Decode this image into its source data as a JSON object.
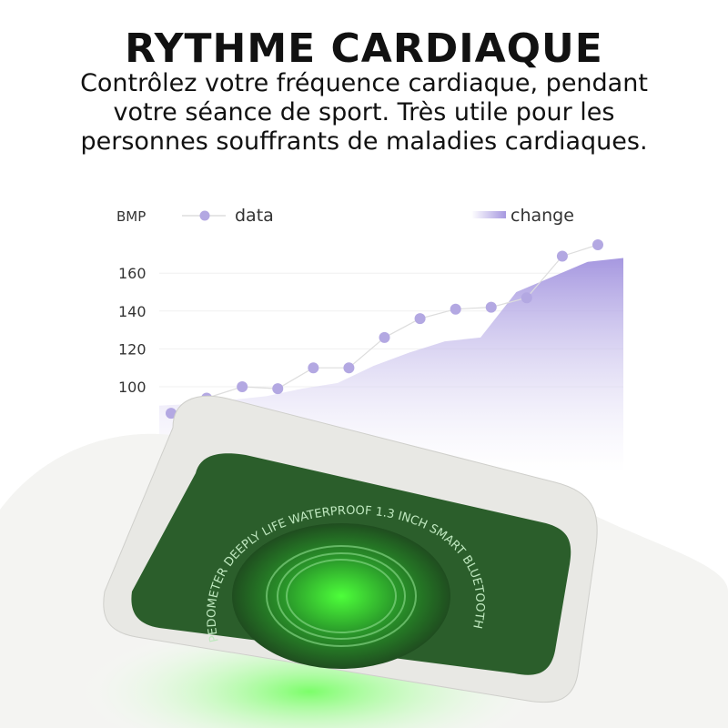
{
  "header": {
    "title": "RYTHME CARDIAQUE",
    "subtitle_lines": [
      "Contrôlez votre fréquence cardiaque, pendant",
      "votre séance de sport. Très utile pour les",
      "personnes souffrants de maladies cardiaques."
    ]
  },
  "chart_data": {
    "type": "line",
    "ylabel": "BMP",
    "yticks": [
      "100",
      "120",
      "140",
      "160"
    ],
    "ylim": [
      80,
      180
    ],
    "grid": true,
    "legend_placement": "top",
    "series": [
      {
        "name": "data",
        "kind": "line-markers",
        "color": "#b3a8e2",
        "values": [
          86,
          94,
          100,
          99,
          110,
          110,
          126,
          136,
          141,
          142,
          147,
          169,
          175
        ]
      },
      {
        "name": "change",
        "kind": "area",
        "color": "#a89ce0",
        "values": [
          90,
          91,
          93,
          95,
          99,
          102,
          111,
          118,
          124,
          126,
          150,
          158,
          166,
          168
        ]
      }
    ]
  },
  "watch": {
    "engraving": "PEDOMETER DEEPLY LIFE WATERPROOF 1.3 INCH SMART BLUETOOTH WATCH ACCURATE",
    "sensor_color": "#3cff3c",
    "body_color": "#eeeeec"
  }
}
